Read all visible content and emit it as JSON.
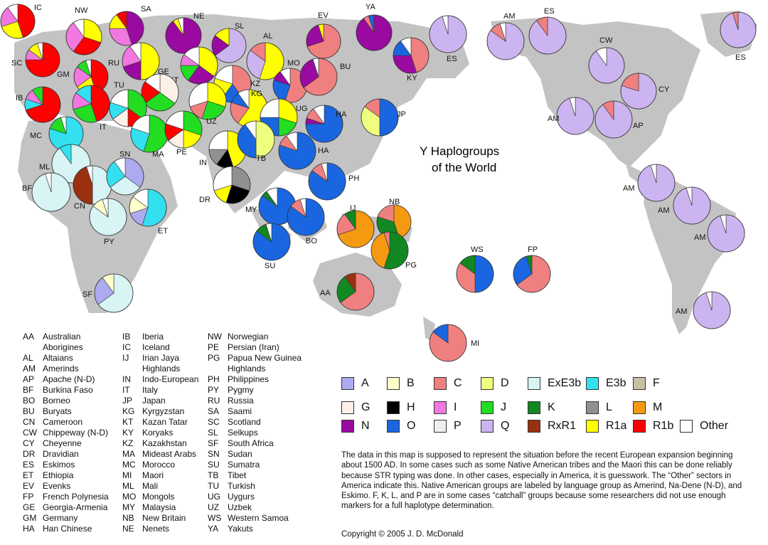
{
  "title_line1": "Y Haplogroups",
  "title_line2": "of the World",
  "colors": {
    "A": "#aeaaf0",
    "B": "#ffffcc",
    "C": "#f08080",
    "D": "#eeff80",
    "ExE3b": "#d8f4f4",
    "E3b": "#33e0f0",
    "F": "#c8c0a0",
    "G": "#fff0e8",
    "H": "#000000",
    "I": "#f078e0",
    "J": "#22dd22",
    "K": "#118822",
    "L": "#909090",
    "M": "#f59a10",
    "N": "#9a0aa0",
    "O": "#1a66e0",
    "P": "#eeeeee",
    "Q": "#ccb4f0",
    "RxR1": "#9a3010",
    "R1a": "#ffff00",
    "R1b": "#ff0000",
    "Other": "#ffffff"
  },
  "legend": [
    {
      "code": "A",
      "label": "A"
    },
    {
      "code": "B",
      "label": "B"
    },
    {
      "code": "C",
      "label": "C"
    },
    {
      "code": "D",
      "label": "D"
    },
    {
      "code": "ExE3b",
      "label": "ExE3b"
    },
    {
      "code": "E3b",
      "label": "E3b"
    },
    {
      "code": "F",
      "label": "F"
    },
    {
      "code": "G",
      "label": "G"
    },
    {
      "code": "H",
      "label": "H"
    },
    {
      "code": "I",
      "label": "I"
    },
    {
      "code": "J",
      "label": "J"
    },
    {
      "code": "K",
      "label": "K"
    },
    {
      "code": "L",
      "label": "L"
    },
    {
      "code": "M",
      "label": "M"
    },
    {
      "code": "N",
      "label": "N"
    },
    {
      "code": "O",
      "label": "O"
    },
    {
      "code": "P",
      "label": "P"
    },
    {
      "code": "Q",
      "label": "Q"
    },
    {
      "code": "RxR1",
      "label": "RxR1"
    },
    {
      "code": "R1a",
      "label": "R1a"
    },
    {
      "code": "R1b",
      "label": "R1b"
    },
    {
      "code": "Other",
      "label": "Other"
    }
  ],
  "abbreviations": [
    {
      "code": "AA",
      "name": "Australian"
    },
    {
      "code": "",
      "name": "Aborigines"
    },
    {
      "code": "AL",
      "name": "Altaians"
    },
    {
      "code": "AM",
      "name": "Amerinds"
    },
    {
      "code": "AP",
      "name": "Apache (N-D)"
    },
    {
      "code": "BF",
      "name": "Burkina Faso"
    },
    {
      "code": "BO",
      "name": "Borneo"
    },
    {
      "code": "BU",
      "name": "Buryats"
    },
    {
      "code": "CN",
      "name": "Cameroon"
    },
    {
      "code": "CW",
      "name": "Chippeway (N-D)"
    },
    {
      "code": "CY",
      "name": "Cheyenne"
    },
    {
      "code": "DR",
      "name": "Dravidian"
    },
    {
      "code": "ES",
      "name": "Eskimos"
    },
    {
      "code": "ET",
      "name": "Ethiopia"
    },
    {
      "code": "EV",
      "name": "Evenks"
    },
    {
      "code": "FP",
      "name": "French Polynesia"
    },
    {
      "code": "GE",
      "name": "Georgia-Armenia"
    },
    {
      "code": "GM",
      "name": "Germany"
    },
    {
      "code": "HA",
      "name": "Han Chinese"
    },
    {
      "code": "IB",
      "name": "Iberia"
    },
    {
      "code": "IC",
      "name": "Iceland"
    },
    {
      "code": "IJ",
      "name": "Irian Jaya"
    },
    {
      "code": "",
      "name": "Highlands"
    },
    {
      "code": "IN",
      "name": "Indo-European"
    },
    {
      "code": "IT",
      "name": "Italy"
    },
    {
      "code": "JP",
      "name": "Japan"
    },
    {
      "code": "KG",
      "name": "Kyrgyzstan"
    },
    {
      "code": "KT",
      "name": "Kazan Tatar"
    },
    {
      "code": "KY",
      "name": "Koryaks"
    },
    {
      "code": "KZ",
      "name": "Kazakhstan"
    },
    {
      "code": "MA",
      "name": "Mideast Arabs"
    },
    {
      "code": "MC",
      "name": "Morocco"
    },
    {
      "code": "MI",
      "name": "Maori"
    },
    {
      "code": "ML",
      "name": "Mali"
    },
    {
      "code": "MO",
      "name": "Mongols"
    },
    {
      "code": "MY",
      "name": "Malaysia"
    },
    {
      "code": "NB",
      "name": "New Britain"
    },
    {
      "code": "NE",
      "name": "Nenets"
    },
    {
      "code": "NW",
      "name": "Norwegian"
    },
    {
      "code": "PE",
      "name": "Persian (Iran)"
    },
    {
      "code": "PG",
      "name": "Papua New Guinea"
    },
    {
      "code": "",
      "name": "Highlands"
    },
    {
      "code": "PH",
      "name": "Philippines"
    },
    {
      "code": "PY",
      "name": "Pygmy"
    },
    {
      "code": "RU",
      "name": "Russia"
    },
    {
      "code": "SA",
      "name": "Saami"
    },
    {
      "code": "SC",
      "name": "Scotland"
    },
    {
      "code": "SL",
      "name": "Selkups"
    },
    {
      "code": "SF",
      "name": "South Africa"
    },
    {
      "code": "SN",
      "name": "Sudan"
    },
    {
      "code": "SU",
      "name": "Sumatra"
    },
    {
      "code": "TB",
      "name": "Tibet"
    },
    {
      "code": "TU",
      "name": "Turkish"
    },
    {
      "code": "UG",
      "name": "Uygurs"
    },
    {
      "code": "UZ",
      "name": "Uzbek"
    },
    {
      "code": "WS",
      "name": "Western Samoa"
    },
    {
      "code": "YA",
      "name": "Yakuts"
    }
  ],
  "note": "The data in this map is supposed to represent the situation before the recent European expansion beginning about 1500 AD. In some cases such as some Native American tribes and the Maori this can be done reliably because STR typing was done. In other cases, especially in America, it is guesswork. The “Other” sectors in America indicate this. Native American groups are labeled by language group as Amerind, Na-Dene (N-D), and Eskimo.  F, K, L, and P are in some cases “catchall” groups because some researchers did not use enough markers for a full haplotype determination.",
  "copyright": "Copyright © 2005 J. D. McDonald",
  "pies": [
    {
      "label": "IC",
      "slices": [
        [
          "R1b",
          0.45
        ],
        [
          "R1a",
          0.25
        ],
        [
          "I",
          0.2
        ],
        [
          "Other",
          0.1
        ]
      ]
    },
    {
      "label": "NW",
      "slices": [
        [
          "R1a",
          0.3
        ],
        [
          "R1b",
          0.3
        ],
        [
          "I",
          0.3
        ],
        [
          "Other",
          0.1
        ]
      ]
    },
    {
      "label": "SA",
      "slices": [
        [
          "N",
          0.45
        ],
        [
          "I",
          0.3
        ],
        [
          "R1a",
          0.15
        ],
        [
          "R1b",
          0.1
        ]
      ]
    },
    {
      "label": "NE",
      "slices": [
        [
          "N",
          0.9
        ],
        [
          "R1a",
          0.05
        ],
        [
          "Other",
          0.05
        ]
      ]
    },
    {
      "label": "SL",
      "slices": [
        [
          "Q",
          0.65
        ],
        [
          "N",
          0.2
        ],
        [
          "R1a",
          0.15
        ]
      ]
    },
    {
      "label": "AL",
      "slices": [
        [
          "R1a",
          0.55
        ],
        [
          "Q",
          0.3
        ],
        [
          "C",
          0.15
        ]
      ]
    },
    {
      "label": "EV",
      "slices": [
        [
          "C",
          0.7
        ],
        [
          "N",
          0.25
        ],
        [
          "R1a",
          0.05
        ]
      ]
    },
    {
      "label": "YA",
      "slices": [
        [
          "N",
          0.9
        ],
        [
          "C",
          0.05
        ],
        [
          "O",
          0.05
        ]
      ]
    },
    {
      "label": "AM",
      "slices": [
        [
          "Q",
          0.85
        ],
        [
          "C",
          0.1
        ],
        [
          "Other",
          0.05
        ]
      ]
    },
    {
      "label": "ES",
      "slices": [
        [
          "Q",
          0.9
        ],
        [
          "C",
          0.1
        ]
      ]
    },
    {
      "label": "ES",
      "slices": [
        [
          "Q",
          0.95
        ],
        [
          "C",
          0.05
        ]
      ]
    },
    {
      "label": "SC",
      "slices": [
        [
          "R1b",
          0.75
        ],
        [
          "I",
          0.1
        ],
        [
          "R1a",
          0.1
        ],
        [
          "Other",
          0.05
        ]
      ]
    },
    {
      "label": "GM",
      "slices": [
        [
          "R1b",
          0.45
        ],
        [
          "R1a",
          0.2
        ],
        [
          "I",
          0.2
        ],
        [
          "J",
          0.1
        ],
        [
          "Other",
          0.05
        ]
      ]
    },
    {
      "label": "RU",
      "slices": [
        [
          "R1a",
          0.5
        ],
        [
          "N",
          0.2
        ],
        [
          "I",
          0.2
        ],
        [
          "Other",
          0.1
        ]
      ]
    },
    {
      "label": "KT",
      "slices": [
        [
          "R1a",
          0.35
        ],
        [
          "N",
          0.25
        ],
        [
          "J",
          0.15
        ],
        [
          "I",
          0.1
        ],
        [
          "Other",
          0.15
        ]
      ]
    },
    {
      "label": "GE",
      "slices": [
        [
          "G",
          0.35
        ],
        [
          "J",
          0.3
        ],
        [
          "R1b",
          0.2
        ],
        [
          "Other",
          0.15
        ]
      ]
    },
    {
      "label": "MO",
      "slices": [
        [
          "C",
          0.55
        ],
        [
          "O",
          0.25
        ],
        [
          "N",
          0.1
        ],
        [
          "Other",
          0.1
        ]
      ]
    },
    {
      "label": "BU",
      "slices": [
        [
          "C",
          0.65
        ],
        [
          "N",
          0.3
        ],
        [
          "Other",
          0.05
        ]
      ]
    },
    {
      "label": "KY",
      "slices": [
        [
          "C",
          0.45
        ],
        [
          "N",
          0.3
        ],
        [
          "O",
          0.15
        ],
        [
          "Other",
          0.1
        ]
      ]
    },
    {
      "label": "ES",
      "slices": [
        [
          "Q",
          0.95
        ],
        [
          "Other",
          0.05
        ]
      ]
    },
    {
      "label": "CW",
      "slices": [
        [
          "Q",
          0.9
        ],
        [
          "Other",
          0.1
        ]
      ]
    },
    {
      "label": "CY",
      "slices": [
        [
          "Q",
          0.8
        ],
        [
          "C",
          0.2
        ]
      ]
    },
    {
      "label": "IB",
      "slices": [
        [
          "R1b",
          0.7
        ],
        [
          "E3b",
          0.1
        ],
        [
          "I",
          0.1
        ],
        [
          "J",
          0.1
        ]
      ]
    },
    {
      "label": "IT",
      "slices": [
        [
          "R1b",
          0.45
        ],
        [
          "J",
          0.25
        ],
        [
          "I",
          0.15
        ],
        [
          "E3b",
          0.15
        ]
      ]
    },
    {
      "label": "TU",
      "slices": [
        [
          "J",
          0.35
        ],
        [
          "R1b",
          0.15
        ],
        [
          "G",
          0.15
        ],
        [
          "E3b",
          0.15
        ],
        [
          "Other",
          0.2
        ]
      ]
    },
    {
      "label": "KZ",
      "slices": [
        [
          "C",
          0.4
        ],
        [
          "O",
          0.2
        ],
        [
          "R1a",
          0.2
        ],
        [
          "Other",
          0.2
        ]
      ]
    },
    {
      "label": "KG",
      "slices": [
        [
          "R1a",
          0.6
        ],
        [
          "C",
          0.2
        ],
        [
          "O",
          0.1
        ],
        [
          "Other",
          0.1
        ]
      ]
    },
    {
      "label": "UZ",
      "slices": [
        [
          "R1a",
          0.3
        ],
        [
          "J",
          0.25
        ],
        [
          "C",
          0.15
        ],
        [
          "Other",
          0.3
        ]
      ]
    },
    {
      "label": "UG",
      "slices": [
        [
          "R1a",
          0.3
        ],
        [
          "J",
          0.2
        ],
        [
          "O",
          0.25
        ],
        [
          "Other",
          0.25
        ]
      ]
    },
    {
      "label": "JP",
      "slices": [
        [
          "O",
          0.5
        ],
        [
          "D",
          0.35
        ],
        [
          "C",
          0.15
        ]
      ]
    },
    {
      "label": "MC",
      "slices": [
        [
          "E3b",
          0.8
        ],
        [
          "J",
          0.15
        ],
        [
          "Other",
          0.05
        ]
      ]
    },
    {
      "label": "MA",
      "slices": [
        [
          "J",
          0.55
        ],
        [
          "E3b",
          0.25
        ],
        [
          "Other",
          0.2
        ]
      ]
    },
    {
      "label": "PE",
      "slices": [
        [
          "J",
          0.3
        ],
        [
          "R1a",
          0.2
        ],
        [
          "G",
          0.15
        ],
        [
          "R1b",
          0.15
        ],
        [
          "Other",
          0.2
        ]
      ]
    },
    {
      "label": "IN",
      "slices": [
        [
          "R1a",
          0.45
        ],
        [
          "H",
          0.15
        ],
        [
          "L",
          0.15
        ],
        [
          "Other",
          0.25
        ]
      ]
    },
    {
      "label": "TB",
      "slices": [
        [
          "D",
          0.5
        ],
        [
          "O",
          0.4
        ],
        [
          "Other",
          0.1
        ]
      ]
    },
    {
      "label": "HA",
      "slices": [
        [
          "O",
          0.75
        ],
        [
          "N",
          0.05
        ],
        [
          "C",
          0.1
        ],
        [
          "Other",
          0.1
        ]
      ]
    },
    {
      "label": "HA",
      "slices": [
        [
          "O",
          0.8
        ],
        [
          "C",
          0.1
        ],
        [
          "Other",
          0.1
        ]
      ]
    },
    {
      "label": "ML",
      "slices": [
        [
          "ExE3b",
          0.9
        ],
        [
          "E3b",
          0.1
        ]
      ]
    },
    {
      "label": "BF",
      "slices": [
        [
          "ExE3b",
          0.95
        ],
        [
          "Other",
          0.05
        ]
      ]
    },
    {
      "label": "CN",
      "slices": [
        [
          "ExE3b",
          0.5
        ],
        [
          "RxR1",
          0.45
        ],
        [
          "Other",
          0.05
        ]
      ]
    },
    {
      "label": "SN",
      "slices": [
        [
          "A",
          0.35
        ],
        [
          "ExE3b",
          0.3
        ],
        [
          "E3b",
          0.25
        ],
        [
          "Other",
          0.1
        ]
      ]
    },
    {
      "label": "DR",
      "slices": [
        [
          "L",
          0.3
        ],
        [
          "H",
          0.25
        ],
        [
          "R1a",
          0.15
        ],
        [
          "Other",
          0.3
        ]
      ]
    },
    {
      "label": "PH",
      "slices": [
        [
          "O",
          0.85
        ],
        [
          "C",
          0.1
        ],
        [
          "Other",
          0.05
        ]
      ]
    },
    {
      "label": "MY",
      "slices": [
        [
          "O",
          0.85
        ],
        [
          "K",
          0.05
        ],
        [
          "Other",
          0.1
        ]
      ]
    },
    {
      "label": "BO",
      "slices": [
        [
          "O",
          0.85
        ],
        [
          "C",
          0.1
        ],
        [
          "Other",
          0.05
        ]
      ]
    },
    {
      "label": "SU",
      "slices": [
        [
          "O",
          0.85
        ],
        [
          "K",
          0.1
        ],
        [
          "Other",
          0.05
        ]
      ]
    },
    {
      "label": "PY",
      "slices": [
        [
          "ExE3b",
          0.85
        ],
        [
          "B",
          0.1
        ],
        [
          "Other",
          0.05
        ]
      ]
    },
    {
      "label": "ET",
      "slices": [
        [
          "E3b",
          0.55
        ],
        [
          "A",
          0.15
        ],
        [
          "B",
          0.15
        ],
        [
          "Other",
          0.15
        ]
      ]
    },
    {
      "label": "SF",
      "slices": [
        [
          "ExE3b",
          0.65
        ],
        [
          "A",
          0.25
        ],
        [
          "B",
          0.1
        ]
      ]
    },
    {
      "label": "IJ",
      "slices": [
        [
          "M",
          0.7
        ],
        [
          "C",
          0.2
        ],
        [
          "K",
          0.1
        ]
      ]
    },
    {
      "label": "NB",
      "slices": [
        [
          "M",
          0.45
        ],
        [
          "K",
          0.35
        ],
        [
          "C",
          0.2
        ]
      ]
    },
    {
      "label": "PG",
      "slices": [
        [
          "K",
          0.55
        ],
        [
          "M",
          0.4
        ],
        [
          "C",
          0.05
        ]
      ]
    },
    {
      "label": "AA",
      "slices": [
        [
          "C",
          0.65
        ],
        [
          "K",
          0.25
        ],
        [
          "RxR1",
          0.1
        ]
      ]
    },
    {
      "label": "WS",
      "slices": [
        [
          "O",
          0.5
        ],
        [
          "C",
          0.35
        ],
        [
          "K",
          0.15
        ]
      ]
    },
    {
      "label": "FP",
      "slices": [
        [
          "C",
          0.65
        ],
        [
          "O",
          0.3
        ],
        [
          "K",
          0.05
        ]
      ]
    },
    {
      "label": "MI",
      "slices": [
        [
          "C",
          0.85
        ],
        [
          "O",
          0.15
        ]
      ]
    },
    {
      "label": "AM",
      "slices": [
        [
          "Q",
          0.95
        ],
        [
          "Other",
          0.05
        ]
      ]
    },
    {
      "label": "AP",
      "slices": [
        [
          "Q",
          0.9
        ],
        [
          "C",
          0.1
        ]
      ]
    },
    {
      "label": "AM",
      "slices": [
        [
          "Q",
          0.95
        ],
        [
          "Other",
          0.05
        ]
      ]
    },
    {
      "label": "AM",
      "slices": [
        [
          "Q",
          0.95
        ],
        [
          "Other",
          0.05
        ]
      ]
    },
    {
      "label": "AM",
      "slices": [
        [
          "Q",
          0.95
        ],
        [
          "Other",
          0.05
        ]
      ]
    },
    {
      "label": "AM",
      "slices": [
        [
          "Q",
          0.95
        ],
        [
          "Other",
          0.05
        ]
      ]
    }
  ]
}
